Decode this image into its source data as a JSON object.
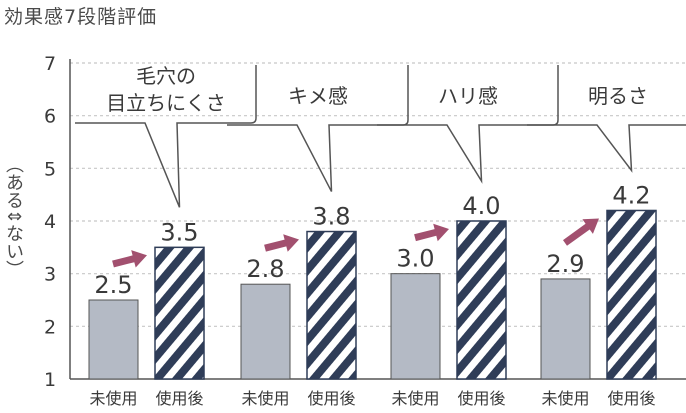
{
  "chart_data": {
    "type": "bar",
    "title": "効果感7段階評価",
    "ylabel": "（ある⇕ない）",
    "ylim": [
      1,
      7
    ],
    "yticks": [
      "1",
      "2",
      "3",
      "4",
      "5",
      "6",
      "7"
    ],
    "grid": true,
    "categories": [
      "毛穴の目立ちにくさ",
      "キメ感",
      "ハリ感",
      "明るさ"
    ],
    "category_labels": [
      [
        "毛穴の",
        "目立ちにくさ"
      ],
      [
        "キメ感"
      ],
      [
        "ハリ感"
      ],
      [
        "明るさ"
      ]
    ],
    "series": [
      {
        "name": "未使用",
        "values": [
          2.5,
          2.8,
          3.0,
          2.9
        ],
        "labels": [
          "2.5",
          "2.8",
          "3.0",
          "2.9"
        ],
        "fill": "#b4bac5"
      },
      {
        "name": "使用後",
        "values": [
          3.5,
          3.8,
          4.0,
          4.2
        ],
        "labels": [
          "3.5",
          "3.8",
          "4.0",
          "4.2"
        ],
        "fill": "hatch-navy-white"
      }
    ],
    "bar_xlabels": [
      "未使用",
      "使用後"
    ]
  },
  "colors": {
    "before_bar": "#b4bac5",
    "after_stripe": "#2f3d58",
    "arrow": "#a2506f",
    "grid": "#c8c8c8",
    "axis": "#555555",
    "text": "#3a3a3a"
  }
}
